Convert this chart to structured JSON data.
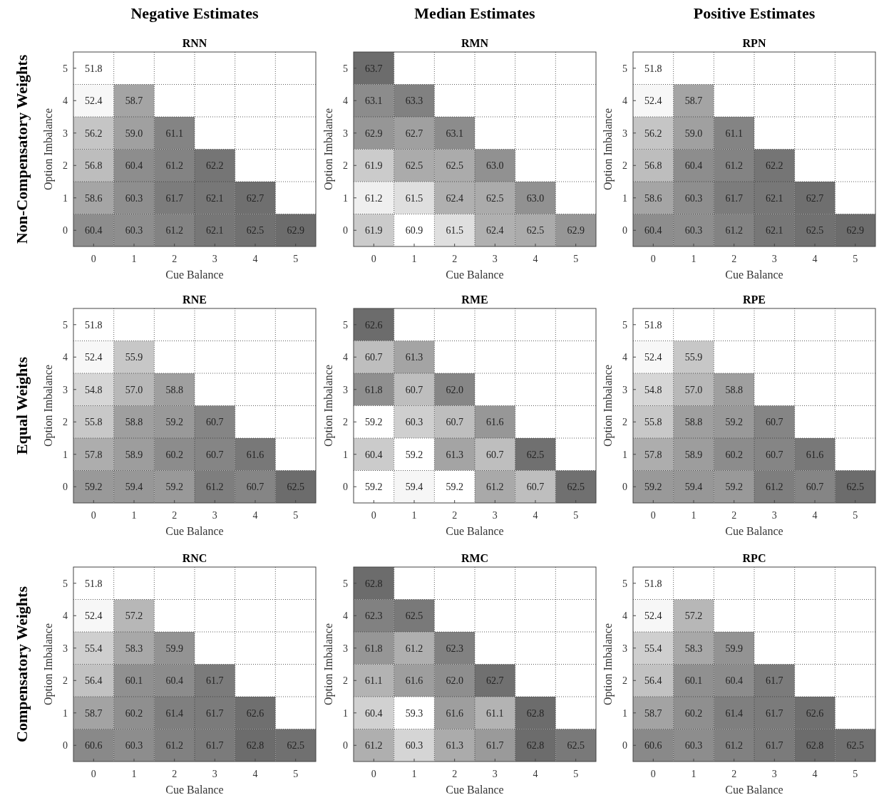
{
  "chart_data": [
    {
      "type": "heatmap",
      "title": "Negative Estimates",
      "subtitle": "RNN",
      "annotations": [
        "Non-Compensatory Weights"
      ],
      "xlabel": "Cue Balance",
      "ylabel": "Option Imbalance",
      "categories": [
        "0",
        "1",
        "2",
        "3",
        "4",
        "5"
      ],
      "y_categories": [
        "5",
        "4",
        "3",
        "2",
        "1",
        "0"
      ],
      "grid": true,
      "data_labels": true,
      "cells": [
        [
          51.8,
          null,
          null,
          null,
          null,
          null
        ],
        [
          52.4,
          58.7,
          null,
          null,
          null,
          null
        ],
        [
          56.2,
          59.0,
          61.1,
          null,
          null,
          null
        ],
        [
          56.8,
          60.4,
          61.2,
          62.2,
          null,
          null
        ],
        [
          58.6,
          60.3,
          61.7,
          62.1,
          62.7,
          null
        ],
        [
          60.4,
          60.3,
          61.2,
          62.1,
          62.5,
          62.9
        ]
      ],
      "cell_labels": [
        [
          "51.8",
          null,
          null,
          null,
          null,
          null
        ],
        [
          "52.4",
          "58.7",
          null,
          null,
          null,
          null
        ],
        [
          "56.2",
          "59.0",
          "61.1",
          null,
          null,
          null
        ],
        [
          "56.8",
          "60.4",
          "61.2",
          "62.2",
          null,
          null
        ],
        [
          "58.6",
          "60.3",
          "61.7",
          "62.1",
          "62.7",
          null
        ],
        [
          "60.4",
          "60.3",
          "61.2",
          "62.1",
          "62.5",
          "62.9"
        ]
      ]
    },
    {
      "type": "heatmap",
      "title": "Median Estimates",
      "subtitle": "RMN",
      "xlabel": "Cue Balance",
      "ylabel": "Option Imbalance",
      "categories": [
        "0",
        "1",
        "2",
        "3",
        "4",
        "5"
      ],
      "y_categories": [
        "5",
        "4",
        "3",
        "2",
        "1",
        "0"
      ],
      "grid": true,
      "data_labels": true,
      "cells": [
        [
          63.7,
          null,
          null,
          null,
          null,
          null
        ],
        [
          63.1,
          63.3,
          null,
          null,
          null,
          null
        ],
        [
          62.9,
          62.7,
          63.1,
          null,
          null,
          null
        ],
        [
          61.9,
          62.5,
          62.5,
          63.0,
          null,
          null
        ],
        [
          61.2,
          61.5,
          62.4,
          62.5,
          63.0,
          null
        ],
        [
          61.9,
          60.9,
          61.5,
          62.4,
          62.5,
          62.9
        ]
      ],
      "cell_labels": [
        [
          "63.7",
          null,
          null,
          null,
          null,
          null
        ],
        [
          "63.1",
          "63.3",
          null,
          null,
          null,
          null
        ],
        [
          "62.9",
          "62.7",
          "63.1",
          null,
          null,
          null
        ],
        [
          "61.9",
          "62.5",
          "62.5",
          "63.0",
          null,
          null
        ],
        [
          "61.2",
          "61.5",
          "62.4",
          "62.5",
          "63.0",
          null
        ],
        [
          "61.9",
          "60.9",
          "61.5",
          "62.4",
          "62.5",
          "62.9"
        ]
      ]
    },
    {
      "type": "heatmap",
      "title": "Positive Estimates",
      "subtitle": "RPN",
      "xlabel": "Cue Balance",
      "ylabel": "Option Imbalance",
      "categories": [
        "0",
        "1",
        "2",
        "3",
        "4",
        "5"
      ],
      "y_categories": [
        "5",
        "4",
        "3",
        "2",
        "1",
        "0"
      ],
      "grid": true,
      "data_labels": true,
      "cells": [
        [
          51.8,
          null,
          null,
          null,
          null,
          null
        ],
        [
          52.4,
          58.7,
          null,
          null,
          null,
          null
        ],
        [
          56.2,
          59.0,
          61.1,
          null,
          null,
          null
        ],
        [
          56.8,
          60.4,
          61.2,
          62.2,
          null,
          null
        ],
        [
          58.6,
          60.3,
          61.7,
          62.1,
          62.7,
          null
        ],
        [
          60.4,
          60.3,
          61.2,
          62.1,
          62.5,
          62.9
        ]
      ],
      "cell_labels": [
        [
          "51.8",
          null,
          null,
          null,
          null,
          null
        ],
        [
          "52.4",
          "58.7",
          null,
          null,
          null,
          null
        ],
        [
          "56.2",
          "59.0",
          "61.1",
          null,
          null,
          null
        ],
        [
          "56.8",
          "60.4",
          "61.2",
          "62.2",
          null,
          null
        ],
        [
          "58.6",
          "60.3",
          "61.7",
          "62.1",
          "62.7",
          null
        ],
        [
          "60.4",
          "60.3",
          "61.2",
          "62.1",
          "62.5",
          "62.9"
        ]
      ]
    },
    {
      "type": "heatmap",
      "title": "RNE",
      "annotations": [
        "Equal Weights"
      ],
      "xlabel": "Cue Balance",
      "ylabel": "Option Imbalance",
      "categories": [
        "0",
        "1",
        "2",
        "3",
        "4",
        "5"
      ],
      "y_categories": [
        "5",
        "4",
        "3",
        "2",
        "1",
        "0"
      ],
      "grid": true,
      "data_labels": true,
      "cells": [
        [
          51.8,
          null,
          null,
          null,
          null,
          null
        ],
        [
          52.4,
          55.9,
          null,
          null,
          null,
          null
        ],
        [
          54.8,
          57.0,
          58.8,
          null,
          null,
          null
        ],
        [
          55.8,
          58.8,
          59.2,
          60.7,
          null,
          null
        ],
        [
          57.8,
          58.9,
          60.2,
          60.7,
          61.6,
          null
        ],
        [
          59.2,
          59.4,
          59.2,
          61.2,
          60.7,
          62.5
        ]
      ],
      "cell_labels": [
        [
          "51.8",
          null,
          null,
          null,
          null,
          null
        ],
        [
          "52.4",
          "55.9",
          null,
          null,
          null,
          null
        ],
        [
          "54.8",
          "57.0",
          "58.8",
          null,
          null,
          null
        ],
        [
          "55.8",
          "58.8",
          "59.2",
          "60.7",
          null,
          null
        ],
        [
          "57.8",
          "58.9",
          "60.2",
          "60.7",
          "61.6",
          null
        ],
        [
          "59.2",
          "59.4",
          "59.2",
          "61.2",
          "60.7",
          "62.5"
        ]
      ]
    },
    {
      "type": "heatmap",
      "title": "RME",
      "xlabel": "Cue Balance",
      "ylabel": "Option Imbalance",
      "categories": [
        "0",
        "1",
        "2",
        "3",
        "4",
        "5"
      ],
      "y_categories": [
        "5",
        "4",
        "3",
        "2",
        "1",
        "0"
      ],
      "grid": true,
      "data_labels": true,
      "cells": [
        [
          62.6,
          null,
          null,
          null,
          null,
          null
        ],
        [
          60.7,
          61.3,
          null,
          null,
          null,
          null
        ],
        [
          61.8,
          60.7,
          62.0,
          null,
          null,
          null
        ],
        [
          59.2,
          60.3,
          60.7,
          61.6,
          null,
          null
        ],
        [
          60.4,
          59.2,
          61.3,
          60.7,
          62.5,
          null
        ],
        [
          59.2,
          59.4,
          59.2,
          61.2,
          60.7,
          62.5
        ]
      ],
      "cell_labels": [
        [
          "62.6",
          null,
          null,
          null,
          null,
          null
        ],
        [
          "60.7",
          "61.3",
          null,
          null,
          null,
          null
        ],
        [
          "61.8",
          "60.7",
          "62.0",
          null,
          null,
          null
        ],
        [
          "59.2",
          "60.3",
          "60.7",
          "61.6",
          null,
          null
        ],
        [
          "60.4",
          "59.2",
          "61.3",
          "60.7",
          "62.5",
          null
        ],
        [
          "59.2",
          "59.4",
          "59.2",
          "61.2",
          "60.7",
          "62.5"
        ]
      ]
    },
    {
      "type": "heatmap",
      "title": "RPE",
      "xlabel": "Cue Balance",
      "ylabel": "Option Imbalance",
      "categories": [
        "0",
        "1",
        "2",
        "3",
        "4",
        "5"
      ],
      "y_categories": [
        "5",
        "4",
        "3",
        "2",
        "1",
        "0"
      ],
      "grid": true,
      "data_labels": true,
      "cells": [
        [
          51.8,
          null,
          null,
          null,
          null,
          null
        ],
        [
          52.4,
          55.9,
          null,
          null,
          null,
          null
        ],
        [
          54.8,
          57.0,
          58.8,
          null,
          null,
          null
        ],
        [
          55.8,
          58.8,
          59.2,
          60.7,
          null,
          null
        ],
        [
          57.8,
          58.9,
          60.2,
          60.7,
          61.6,
          null
        ],
        [
          59.2,
          59.4,
          59.2,
          61.2,
          60.7,
          62.5
        ]
      ],
      "cell_labels": [
        [
          "51.8",
          null,
          null,
          null,
          null,
          null
        ],
        [
          "52.4",
          "55.9",
          null,
          null,
          null,
          null
        ],
        [
          "54.8",
          "57.0",
          "58.8",
          null,
          null,
          null
        ],
        [
          "55.8",
          "58.8",
          "59.2",
          "60.7",
          null,
          null
        ],
        [
          "57.8",
          "58.9",
          "60.2",
          "60.7",
          "61.6",
          null
        ],
        [
          "59.2",
          "59.4",
          "59.2",
          "61.2",
          "60.7",
          "62.5"
        ]
      ]
    },
    {
      "type": "heatmap",
      "title": "RNC",
      "annotations": [
        "Compensatory Weights"
      ],
      "xlabel": "Cue Balance",
      "ylabel": "Option Imbalance",
      "categories": [
        "0",
        "1",
        "2",
        "3",
        "4",
        "5"
      ],
      "y_categories": [
        "5",
        "4",
        "3",
        "2",
        "1",
        "0"
      ],
      "grid": true,
      "data_labels": true,
      "cells": [
        [
          51.8,
          null,
          null,
          null,
          null,
          null
        ],
        [
          52.4,
          57.2,
          null,
          null,
          null,
          null
        ],
        [
          55.4,
          58.3,
          59.9,
          null,
          null,
          null
        ],
        [
          56.4,
          60.1,
          60.4,
          61.7,
          null,
          null
        ],
        [
          58.7,
          60.2,
          61.4,
          61.7,
          62.6,
          null
        ],
        [
          60.6,
          60.3,
          61.2,
          61.7,
          62.8,
          62.5
        ]
      ]
    },
    {
      "type": "heatmap",
      "title": "RMC",
      "xlabel": "Cue Balance",
      "ylabel": "Option Imbalance",
      "categories": [
        "0",
        "1",
        "2",
        "3",
        "4",
        "5"
      ],
      "y_categories": [
        "5",
        "4",
        "3",
        "2",
        "1",
        "0"
      ],
      "grid": true,
      "data_labels": true,
      "cells": [
        [
          62.8,
          null,
          null,
          null,
          null,
          null
        ],
        [
          62.3,
          62.5,
          null,
          null,
          null,
          null
        ],
        [
          61.8,
          61.2,
          62.3,
          null,
          null,
          null
        ],
        [
          61.1,
          61.6,
          62.0,
          62.7,
          null,
          null
        ],
        [
          60.4,
          59.3,
          61.6,
          61.1,
          62.8,
          null
        ],
        [
          61.2,
          60.3,
          61.3,
          61.7,
          62.8,
          62.5
        ]
      ],
      "cell_labels": [
        [
          "62.8",
          null,
          null,
          null,
          null,
          null
        ],
        [
          "62.3",
          "62.5",
          null,
          null,
          null,
          null
        ],
        [
          "61.8",
          "61.2",
          "62.3",
          null,
          null,
          null
        ],
        [
          "61.1",
          "61.6",
          "62.0",
          "62.7",
          null,
          null
        ],
        [
          "60.4",
          "59.3",
          "61.6",
          "61.1",
          "62.8",
          null
        ],
        [
          "61.2",
          "60.3",
          "61.3",
          "61.7",
          "62.8",
          "62.5"
        ]
      ]
    },
    {
      "type": "heatmap",
      "title": "RPC",
      "xlabel": "Cue Balance",
      "ylabel": "Option Imbalance",
      "categories": [
        "0",
        "1",
        "2",
        "3",
        "4",
        "5"
      ],
      "y_categories": [
        "5",
        "4",
        "3",
        "2",
        "1",
        "0"
      ],
      "grid": true,
      "data_labels": true,
      "cells": [
        [
          51.8,
          null,
          null,
          null,
          null,
          null
        ],
        [
          52.4,
          57.2,
          null,
          null,
          null,
          null
        ],
        [
          55.4,
          58.3,
          59.9,
          null,
          null,
          null
        ],
        [
          56.4,
          60.1,
          60.4,
          61.7,
          null,
          null
        ],
        [
          58.7,
          60.2,
          61.4,
          61.7,
          62.6,
          null
        ],
        [
          60.6,
          60.3,
          61.2,
          61.7,
          62.8,
          62.5
        ]
      ]
    }
  ]
}
